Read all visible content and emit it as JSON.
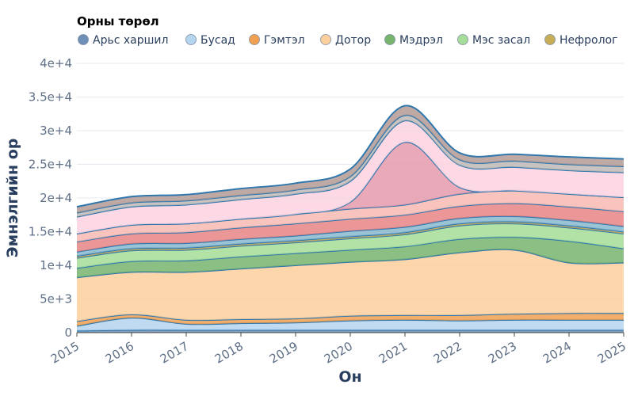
{
  "chart_data": {
    "type": "area",
    "stacked": true,
    "xlabel": "Он",
    "ylabel": "Эмнэлгийн ор",
    "xlim": [
      2015,
      2025
    ],
    "ylim": [
      0,
      40000
    ],
    "x_ticks": [
      "2015",
      "2016",
      "2017",
      "2018",
      "2019",
      "2020",
      "2021",
      "2022",
      "2023",
      "2024",
      "2025"
    ],
    "y_ticks": [
      {
        "value": 0,
        "label": "0"
      },
      {
        "value": 5000,
        "label": "5e+3"
      },
      {
        "value": 10000,
        "label": "1e+4"
      },
      {
        "value": 15000,
        "label": "1.5e+4"
      },
      {
        "value": 20000,
        "label": "2e+4"
      },
      {
        "value": 25000,
        "label": "2.5e+4"
      },
      {
        "value": 30000,
        "label": "3e+4"
      },
      {
        "value": 35000,
        "label": "3.5e+4"
      },
      {
        "value": 40000,
        "label": "4e+4"
      }
    ],
    "grid": true,
    "legend": {
      "title": "Орны төрөл",
      "placement": "top",
      "entries": [
        {
          "name": "Арьс харшил",
          "color": "#6f8fb6"
        },
        {
          "name": "Бусад",
          "color": "#b5d4ee"
        },
        {
          "name": "Гэмтэл",
          "color": "#f0a050"
        },
        {
          "name": "Дотор",
          "color": "#fdcf9c"
        },
        {
          "name": "Мэдрэл",
          "color": "#78b46e"
        },
        {
          "name": "Мэс засал",
          "color": "#a6dd98"
        },
        {
          "name": "Нефролог",
          "color": "#c8ad57"
        }
      ]
    },
    "x": [
      2015,
      2016,
      2017,
      2018,
      2019,
      2020,
      2021,
      2022,
      2023,
      2024,
      2025
    ],
    "series": [
      {
        "name": "Арьс харшил",
        "color": "#6f8fb6",
        "values": [
          300,
          400,
          400,
          400,
          400,
          400,
          400,
          400,
          400,
          400,
          400
        ]
      },
      {
        "name": "Бусад",
        "color": "#b5d4ee",
        "values": [
          700,
          1800,
          900,
          1000,
          1100,
          1400,
          1500,
          1400,
          1500,
          1500,
          1500
        ]
      },
      {
        "name": "Гэмтэл",
        "color": "#f0a050",
        "values": [
          700,
          500,
          600,
          600,
          600,
          700,
          700,
          800,
          900,
          1000,
          1000
        ]
      },
      {
        "name": "Дотор",
        "color": "#fdcf9c",
        "values": [
          6500,
          6300,
          7100,
          7500,
          7900,
          8000,
          8300,
          9300,
          9500,
          7500,
          7500
        ]
      },
      {
        "name": "Мэдрэл",
        "color": "#78b46e",
        "values": [
          1400,
          1600,
          1700,
          1800,
          1800,
          1800,
          1900,
          2000,
          1900,
          3200,
          2100
        ]
      },
      {
        "name": "Мэс засал",
        "color": "#a6dd98",
        "values": [
          1500,
          1600,
          1600,
          1600,
          1600,
          1700,
          1800,
          2000,
          2000,
          2000,
          2200
        ]
      },
      {
        "name": "Нефролог",
        "color": "#c8ad57",
        "values": [
          300,
          300,
          300,
          300,
          300,
          300,
          300,
          300,
          300,
          300,
          300
        ]
      },
      {
        "name": "",
        "color": "#88b8cf",
        "values": [
          600,
          700,
          700,
          700,
          700,
          800,
          800,
          800,
          800,
          800,
          800
        ]
      },
      {
        "name": "",
        "color": "#e98585",
        "values": [
          1500,
          1500,
          1600,
          1700,
          1800,
          1800,
          1800,
          1800,
          1900,
          2000,
          2200
        ]
      },
      {
        "name": "",
        "color": "#f8b9b3",
        "values": [
          1200,
          1300,
          1300,
          1300,
          1400,
          1500,
          1500,
          1800,
          1900,
          1900,
          2100
        ]
      },
      {
        "name": "",
        "color": "#e69aab",
        "values": [
          0,
          0,
          0,
          0,
          0,
          1000,
          9300,
          1000,
          0,
          0,
          0
        ]
      },
      {
        "name": "",
        "color": "#fbd2df",
        "values": [
          2500,
          2700,
          2800,
          2900,
          3000,
          3100,
          3200,
          3300,
          3500,
          3500,
          3700
        ]
      },
      {
        "name": "",
        "color": "#bfbab6",
        "values": [
          600,
          600,
          600,
          600,
          600,
          700,
          800,
          800,
          900,
          900,
          900
        ]
      },
      {
        "name": "",
        "color": "#b39a95",
        "values": [
          900,
          900,
          900,
          1000,
          1000,
          1100,
          1400,
          1000,
          1000,
          1100,
          1100
        ]
      }
    ]
  }
}
